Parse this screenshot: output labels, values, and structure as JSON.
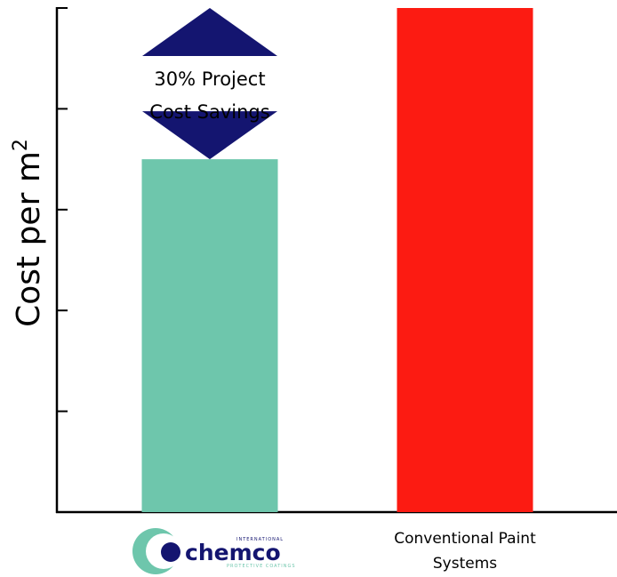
{
  "chart_data": {
    "type": "bar",
    "categories": [
      "Chemco International",
      "Conventional Paint Systems"
    ],
    "values": [
      70,
      100
    ],
    "colors": [
      "#6ec6ac",
      "#fc1b12"
    ],
    "ylabel": "Cost per m",
    "ylabel_superscript": "2",
    "ylim": [
      0,
      100
    ],
    "y_ticks": 5,
    "tick_labels_visible": false,
    "grid": false,
    "annotation": {
      "lines": [
        "30% Project",
        "Cost Savings"
      ],
      "arrow_color": "#141570"
    },
    "category_labels": [
      {
        "type": "logo",
        "logo": {
          "small_top": "INTERNATIONAL",
          "word": "chemco",
          "small_bottom": "PROTECTIVE COATINGS"
        }
      },
      {
        "type": "text",
        "lines": [
          "Conventional Paint",
          "Systems"
        ]
      }
    ]
  }
}
